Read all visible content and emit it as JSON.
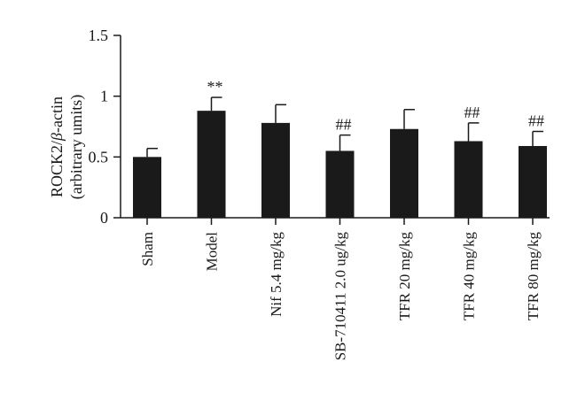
{
  "chart_data": {
    "type": "bar",
    "categories": [
      "Sham",
      "Model",
      "Nif 5.4 mg/kg",
      "SB-710411 2.0 ug/kg",
      "TFR 20 mg/kg",
      "TFR 40 mg/kg",
      "TFR 80 mg/kg"
    ],
    "series": [
      {
        "values": [
          0.5,
          0.88,
          0.78,
          0.55,
          0.73,
          0.63,
          0.59
        ],
        "error": [
          0.07,
          0.11,
          0.15,
          0.13,
          0.16,
          0.15,
          0.12
        ],
        "annotations": [
          "",
          "**",
          "",
          "##",
          "",
          "##",
          "##"
        ]
      }
    ],
    "ylabel_line1": "ROCK2/",
    "ylabel_beta": "β",
    "ylabel_line1_rest": "-actin",
    "ylabel_line2": "(arbitrary umits)",
    "ylim": [
      0,
      1.5
    ],
    "yticks": [
      0,
      0.5,
      1,
      1.5
    ],
    "ytick_labels": [
      "0",
      "0.5",
      "1",
      "1.5"
    ],
    "grid": false,
    "bar_color": "#1a1a1a"
  }
}
